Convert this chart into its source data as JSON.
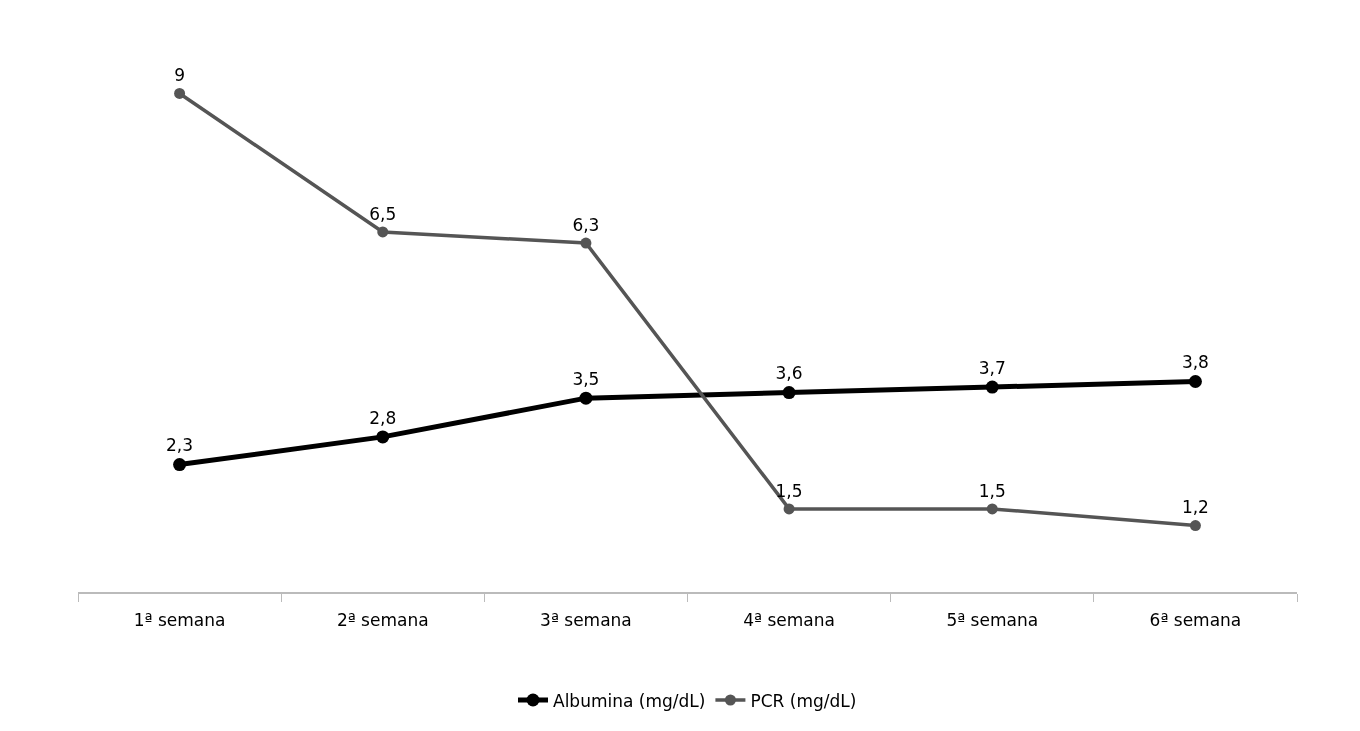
{
  "chart_data": {
    "type": "line",
    "categories": [
      "1ª semana",
      "2ª semana",
      "3ª semana",
      "4ª semana",
      "5ª semana",
      "6ª semana"
    ],
    "series": [
      {
        "name": "Albumina (mg/dL)",
        "color": "#000000",
        "values": [
          2.3,
          2.8,
          3.5,
          3.6,
          3.7,
          3.8
        ],
        "value_labels": [
          "2,3",
          "2,8",
          "3,5",
          "3,6",
          "3,7",
          "3,8"
        ]
      },
      {
        "name": "PCR (mg/dL)",
        "color": "#555555",
        "values": [
          9,
          6.5,
          6.3,
          1.5,
          1.5,
          1.2
        ],
        "value_labels": [
          "9",
          "6,5",
          "6,3",
          "1,5",
          "1,5",
          "1,2"
        ]
      }
    ],
    "tick_labels": "x",
    "legend": "bottom",
    "marker": "circle",
    "line_style": "solid"
  }
}
